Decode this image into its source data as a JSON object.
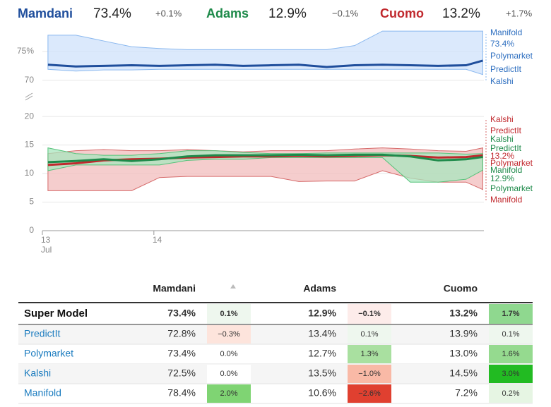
{
  "header": {
    "candidates": [
      {
        "name": "Mamdani",
        "value": "73.4%",
        "change": "+0.1%",
        "color": "#1f4e9c"
      },
      {
        "name": "Adams",
        "value": "12.9%",
        "change": "−0.1%",
        "color": "#1e8a4a"
      },
      {
        "name": "Cuomo",
        "value": "13.2%",
        "change": "+1.7%",
        "color": "#c0282d"
      }
    ]
  },
  "chart_data": {
    "type": "line",
    "x": [
      13.05,
      13.3,
      13.55,
      13.8,
      14.05,
      14.3,
      14.55,
      14.8,
      15.05,
      15.3,
      15.55,
      15.8,
      16.05,
      16.3,
      16.55,
      16.8,
      16.95
    ],
    "xlim": [
      13,
      16.96
    ],
    "xticks": [
      13,
      14
    ],
    "x_tick_sublabel": "Jul",
    "ylim": [
      0,
      21
    ],
    "yticks": [
      0,
      5,
      10,
      15,
      20
    ],
    "ylim_upper": [
      69.5,
      79
    ],
    "yticks_upper": [
      70,
      {
        "value": 75,
        "label": "75%"
      }
    ],
    "grid": true,
    "series": [
      {
        "name": "Mamdani",
        "panel": "upper",
        "color": "#1f4e9c",
        "band_color": "#cfe2fb",
        "band_stroke": "#8ab8ef",
        "values": [
          72.7,
          72.4,
          72.5,
          72.6,
          72.5,
          72.6,
          72.7,
          72.5,
          72.6,
          72.7,
          72.3,
          72.6,
          72.7,
          72.6,
          72.5,
          72.6,
          73.4
        ],
        "band_high": [
          77.8,
          77.8,
          76.8,
          75.8,
          75.5,
          75.3,
          75.3,
          75.3,
          75.3,
          75.3,
          75.3,
          76,
          78.5,
          78.5,
          78.5,
          78.5,
          78.5
        ],
        "band_low": [
          71.9,
          71.6,
          71.8,
          71.8,
          71.9,
          71.9,
          71.9,
          71.9,
          71.9,
          71.9,
          71.9,
          71.9,
          71.9,
          71.9,
          71.9,
          71.9,
          71.0
        ]
      },
      {
        "name": "Cuomo",
        "panel": "lower",
        "color": "#c0282d",
        "band_color": "#f2bcbc",
        "band_stroke": "#d66a6a",
        "values": [
          11.5,
          11.8,
          12.3,
          12.5,
          12.6,
          12.8,
          12.9,
          13,
          13,
          13.1,
          13,
          13.1,
          13.2,
          13.1,
          12.8,
          12.9,
          13.2
        ],
        "band_high": [
          13.5,
          14,
          14.2,
          14,
          14,
          14.2,
          14,
          13.8,
          14,
          14,
          14,
          14.3,
          14.5,
          14.3,
          14,
          13.9,
          14.5
        ],
        "band_low": [
          7,
          7,
          7,
          7,
          9.3,
          9.5,
          9.5,
          9.5,
          9.5,
          8.6,
          8.7,
          8.7,
          10.5,
          9.2,
          8.5,
          8.5,
          7.2
        ]
      },
      {
        "name": "Adams",
        "panel": "lower",
        "color": "#1e8a4a",
        "band_color": "#a8e6bd",
        "band_stroke": "#55c27a",
        "values": [
          12,
          12.2,
          12.5,
          12.2,
          12.5,
          13,
          13.2,
          13.2,
          13.2,
          13.3,
          13.2,
          13.3,
          13.3,
          13,
          12.3,
          12.5,
          12.9
        ],
        "band_high": [
          14.5,
          13.5,
          13.2,
          13.2,
          13.5,
          14,
          14,
          13.7,
          13.5,
          13.5,
          13.6,
          13.6,
          13.6,
          13.6,
          13.6,
          13.4,
          13.5
        ],
        "band_low": [
          10.5,
          11.5,
          11.5,
          11.5,
          11.5,
          12.3,
          12.5,
          12.5,
          12.8,
          12.8,
          12.8,
          12.8,
          12.8,
          8.5,
          8.5,
          9,
          10.6
        ]
      }
    ],
    "end_labels": [
      {
        "text": "Manifold",
        "series": 0
      },
      {
        "text": "73.4%",
        "series": 0
      },
      {
        "text": "Polymarket",
        "series": 0
      },
      {
        "text": "PredictIt",
        "series": 0
      },
      {
        "text": "Kalshi",
        "series": 0
      },
      {
        "text": "Kalshi",
        "series": 1
      },
      {
        "text": "PredictIt",
        "series": 1
      },
      {
        "text": "Kalshi",
        "series": 2
      },
      {
        "text": "PredictIt",
        "series": 2
      },
      {
        "text": "13.2%",
        "series": 1
      },
      {
        "text": "Polymarket",
        "series": 1
      },
      {
        "text": "Manifold",
        "series": 2
      },
      {
        "text": "12.9%",
        "series": 2
      },
      {
        "text": "Polymarket",
        "series": 2
      },
      {
        "text": "Manifold",
        "series": 1
      }
    ]
  },
  "table": {
    "columns": [
      "Mamdani",
      "Adams",
      "Cuomo"
    ],
    "rows": [
      {
        "name": "Super Model",
        "cells": [
          {
            "value": "73.4%",
            "change": "0.1%",
            "color": "#eef7ee"
          },
          {
            "value": "12.9%",
            "change": "−0.1%",
            "color": "#fdecea"
          },
          {
            "value": "13.2%",
            "change": "1.7%",
            "color": "#8fd88f"
          }
        ]
      },
      {
        "name": "PredictIt",
        "cells": [
          {
            "value": "72.8%",
            "change": "−0.3%",
            "color": "#fde4dc"
          },
          {
            "value": "13.4%",
            "change": "0.1%",
            "color": "#eef7ee"
          },
          {
            "value": "13.9%",
            "change": "0.1%",
            "color": "#eef7ee"
          }
        ]
      },
      {
        "name": "Polymarket",
        "cells": [
          {
            "value": "73.4%",
            "change": "0.0%",
            "color": "#ffffff"
          },
          {
            "value": "12.7%",
            "change": "1.3%",
            "color": "#a9e0a0"
          },
          {
            "value": "13.0%",
            "change": "1.6%",
            "color": "#95da8f"
          }
        ]
      },
      {
        "name": "Kalshi",
        "cells": [
          {
            "value": "72.5%",
            "change": "0.0%",
            "color": "#ffffff"
          },
          {
            "value": "13.5%",
            "change": "−1.0%",
            "color": "#f9b9a6"
          },
          {
            "value": "14.5%",
            "change": "3.0%",
            "color": "#22bb22"
          }
        ]
      },
      {
        "name": "Manifold",
        "cells": [
          {
            "value": "78.4%",
            "change": "2.0%",
            "color": "#7fd473"
          },
          {
            "value": "10.6%",
            "change": "−2.6%",
            "color": "#e04030"
          },
          {
            "value": "7.2%",
            "change": "0.2%",
            "color": "#e6f5e3"
          }
        ]
      }
    ]
  }
}
